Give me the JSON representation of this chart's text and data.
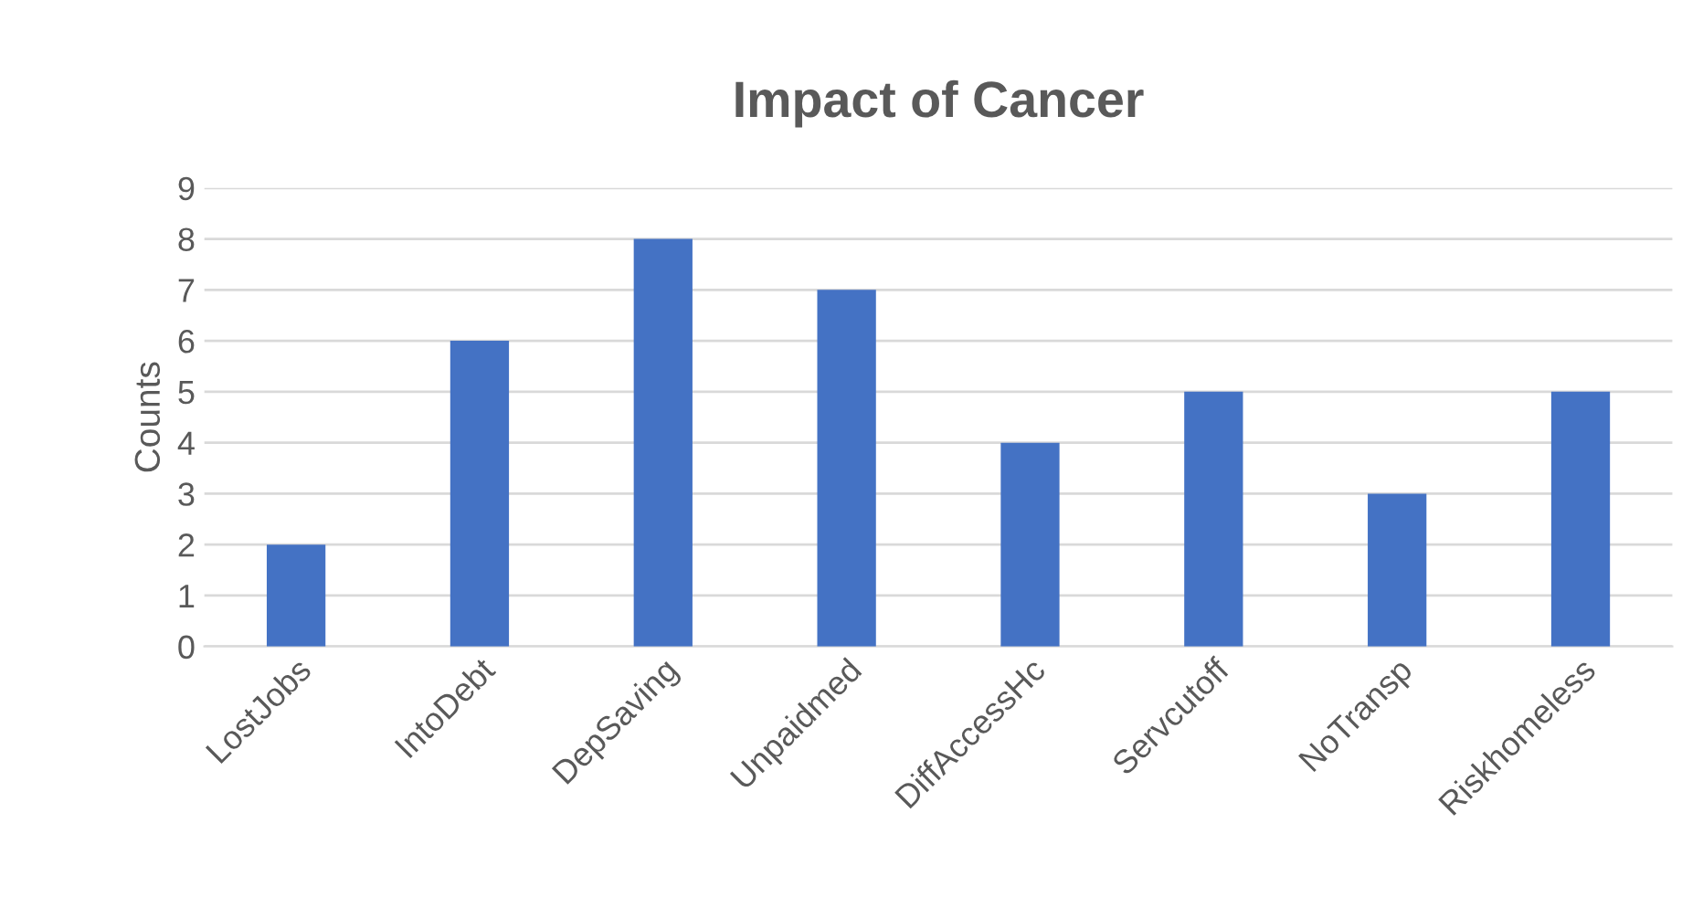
{
  "chart_data": {
    "type": "bar",
    "title": "Impact of Cancer",
    "ylabel": "Counts",
    "categories": [
      "LostJobs",
      "IntoDebt",
      "DepSaving",
      "Unpaidmed",
      "DiffAccessHc",
      "Servcutoff",
      "NoTransp",
      "Riskhomeless"
    ],
    "values": [
      2,
      6,
      8,
      7,
      4,
      5,
      3,
      5
    ],
    "color": "#4472c4",
    "ylim": [
      0,
      9
    ],
    "yticks": [
      0,
      1,
      2,
      3,
      4,
      5,
      6,
      7,
      8,
      9
    ],
    "grid": "y"
  }
}
